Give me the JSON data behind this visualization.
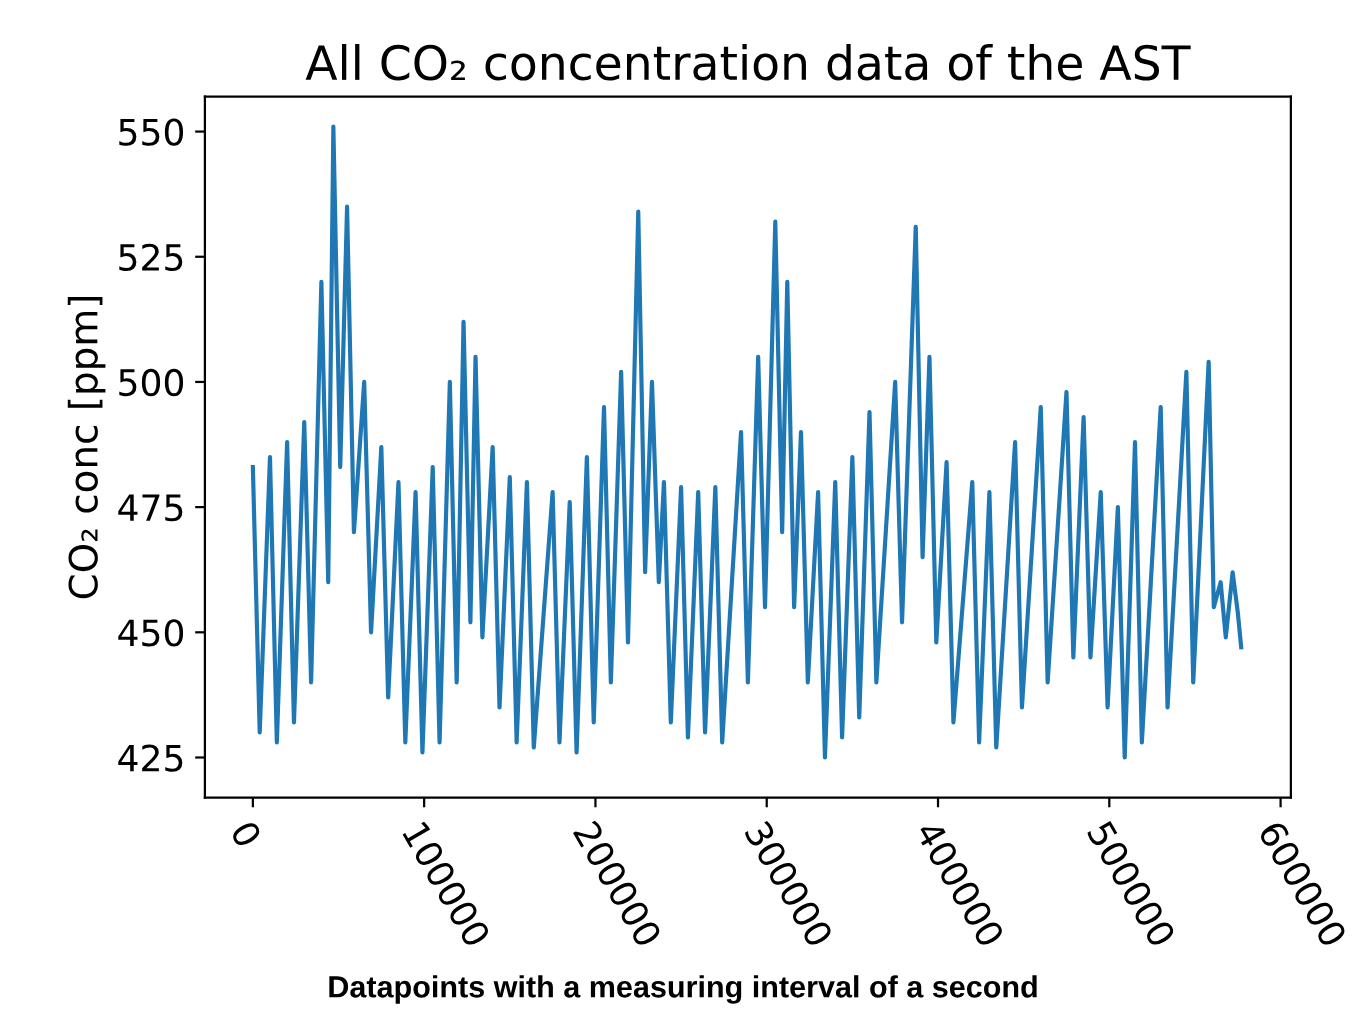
{
  "chart_data": {
    "type": "line",
    "title": "All CO₂ concentration data of the AST",
    "xlabel": "Datapoints with a measuring interval of a second",
    "ylabel": "CO₂ conc [ppm]",
    "xlim": [
      -28000,
      606000
    ],
    "ylim": [
      417,
      557
    ],
    "xticks": [
      0,
      100000,
      200000,
      300000,
      400000,
      500000,
      600000
    ],
    "yticks": [
      425,
      450,
      475,
      500,
      525,
      550
    ],
    "grid": false,
    "legend": false,
    "marker": "none",
    "line_style": "solid",
    "series": [
      {
        "color": "#1f77b4",
        "x": [
          0,
          4000,
          10000,
          14000,
          20000,
          24000,
          30000,
          34000,
          40000,
          44000,
          47000,
          51000,
          55000,
          59000,
          65000,
          69000,
          75000,
          79000,
          85000,
          89000,
          95000,
          99000,
          105000,
          109000,
          115000,
          119000,
          123000,
          127000,
          130000,
          134000,
          140000,
          144000,
          150000,
          154000,
          160000,
          164000,
          175000,
          179000,
          185000,
          189000,
          195000,
          199000,
          205000,
          209000,
          215000,
          219000,
          225000,
          229000,
          233000,
          237000,
          240000,
          244000,
          250000,
          254000,
          260000,
          264000,
          270000,
          274000,
          285000,
          289000,
          295000,
          299000,
          305000,
          309000,
          312000,
          316000,
          320000,
          324000,
          330000,
          334000,
          340000,
          344000,
          350000,
          354000,
          360000,
          364000,
          375000,
          379000,
          387000,
          391000,
          395000,
          399000,
          405000,
          409000,
          420000,
          424000,
          430000,
          434000,
          445000,
          449000,
          460000,
          464000,
          475000,
          479000,
          485000,
          489000,
          495000,
          499000,
          505000,
          509000,
          515000,
          519000,
          530000,
          534000,
          545000,
          549000,
          558000,
          561000,
          565000,
          568000,
          572000,
          575000,
          577000
        ],
        "values": [
          483,
          430,
          485,
          428,
          488,
          432,
          492,
          440,
          520,
          460,
          551,
          483,
          535,
          470,
          500,
          450,
          487,
          437,
          480,
          428,
          478,
          426,
          483,
          428,
          500,
          440,
          512,
          452,
          505,
          449,
          487,
          435,
          481,
          428,
          480,
          427,
          478,
          428,
          476,
          426,
          485,
          432,
          495,
          440,
          502,
          448,
          534,
          462,
          500,
          460,
          480,
          432,
          479,
          429,
          478,
          430,
          479,
          428,
          490,
          440,
          505,
          455,
          532,
          470,
          520,
          455,
          490,
          440,
          478,
          425,
          480,
          429,
          485,
          433,
          494,
          440,
          500,
          452,
          531,
          465,
          505,
          448,
          484,
          432,
          480,
          428,
          478,
          427,
          488,
          435,
          495,
          440,
          498,
          445,
          493,
          445,
          478,
          435,
          475,
          425,
          488,
          428,
          495,
          435,
          502,
          440,
          504,
          455,
          460,
          449,
          462,
          454,
          447
        ]
      }
    ]
  }
}
